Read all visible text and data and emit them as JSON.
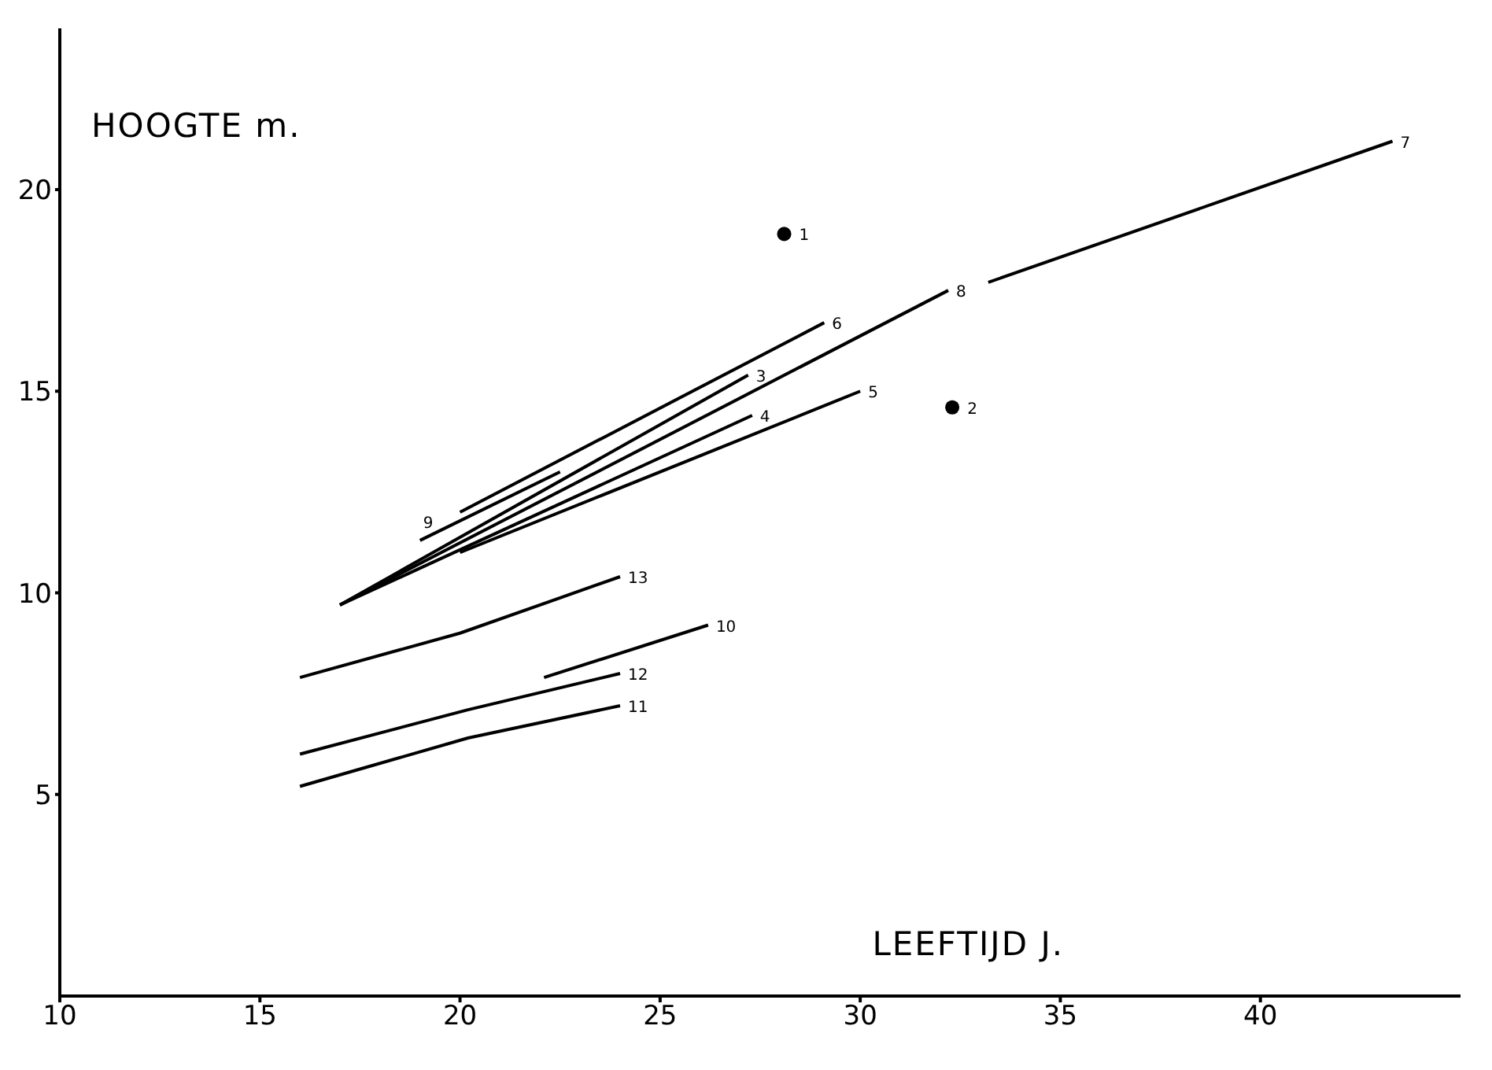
{
  "chart_data": {
    "type": "line",
    "xlabel": "LEEFTIJD J.",
    "ylabel": "HOOGTE m.",
    "xlim": [
      10,
      45
    ],
    "ylim": [
      0,
      24
    ],
    "xticks": [
      10,
      15,
      20,
      25,
      30,
      35,
      40
    ],
    "yticks": [
      5,
      10,
      15,
      20
    ],
    "grid": false,
    "legend": false,
    "marker": "none",
    "line_style": "solid",
    "series": [
      {
        "name": "1",
        "type": "scatter",
        "marker": "circle",
        "color": "#000000",
        "x": [
          28.1
        ],
        "values": [
          18.9
        ]
      },
      {
        "name": "2",
        "type": "scatter",
        "marker": "circle",
        "color": "#000000",
        "x": [
          32.3
        ],
        "values": [
          14.6
        ]
      },
      {
        "name": "3",
        "color": "#000000",
        "x": [
          17,
          27.2
        ],
        "values": [
          9.7,
          15.4
        ]
      },
      {
        "name": "4",
        "color": "#000000",
        "x": [
          17,
          27.3
        ],
        "values": [
          9.7,
          14.4
        ]
      },
      {
        "name": "5",
        "color": "#000000",
        "x": [
          20,
          30
        ],
        "values": [
          11,
          15
        ]
      },
      {
        "name": "6",
        "color": "#000000",
        "x": [
          20,
          29.1
        ],
        "values": [
          12,
          16.7
        ]
      },
      {
        "name": "7",
        "color": "#000000",
        "x": [
          33.2,
          43.3
        ],
        "values": [
          17.7,
          21.2
        ]
      },
      {
        "name": "8",
        "color": "#000000",
        "x": [
          17,
          32.2
        ],
        "values": [
          9.7,
          17.5
        ]
      },
      {
        "name": "9",
        "color": "#000000",
        "x": [
          22.5,
          19
        ],
        "values": [
          13,
          11.3
        ]
      },
      {
        "name": "10",
        "color": "#000000",
        "x": [
          22.1,
          26.2
        ],
        "values": [
          7.9,
          9.2
        ]
      },
      {
        "name": "11",
        "color": "#000000",
        "x": [
          16,
          20.2,
          24
        ],
        "values": [
          5.2,
          6.4,
          7.2
        ]
      },
      {
        "name": "12",
        "color": "#000000",
        "x": [
          16,
          20.2,
          24
        ],
        "values": [
          6,
          7.1,
          8
        ]
      },
      {
        "name": "13",
        "color": "#000000",
        "x": [
          16,
          20,
          24
        ],
        "values": [
          7.9,
          9,
          10.4
        ]
      }
    ]
  }
}
